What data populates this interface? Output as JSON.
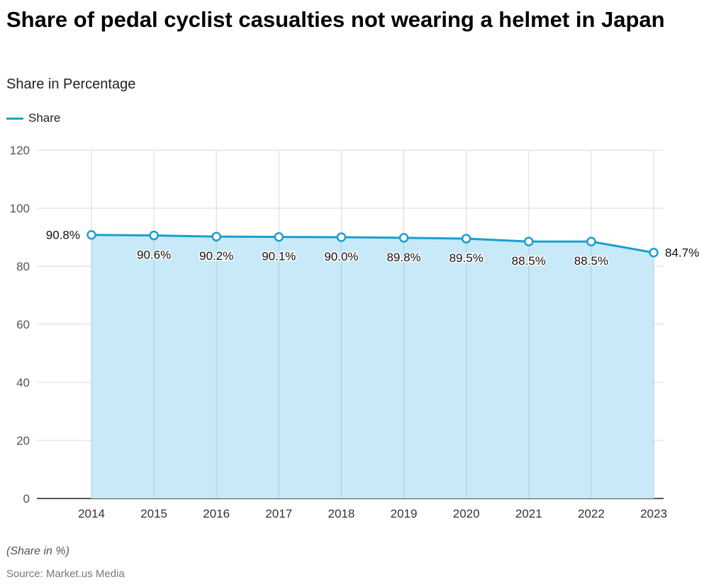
{
  "title": "Share of pedal cyclist casualties not wearing a helmet in Japan",
  "subtitle": "Share in Percentage",
  "note": "(Share in %)",
  "source": "Source: Market.us Media",
  "colors": {
    "line": "#1a9fcc",
    "fill": "#c5e8f7",
    "grid": "#d9d9d9"
  },
  "chart_data": {
    "type": "area",
    "categories": [
      "2014",
      "2015",
      "2016",
      "2017",
      "2018",
      "2019",
      "2020",
      "2021",
      "2022",
      "2023"
    ],
    "series": [
      {
        "name": "Share",
        "values": [
          90.8,
          90.6,
          90.2,
          90.1,
          90.0,
          89.8,
          89.5,
          88.5,
          88.5,
          84.7
        ],
        "labels": [
          "90.8%",
          "90.6%",
          "90.2%",
          "90.1%",
          "90.0%",
          "89.8%",
          "89.5%",
          "88.5%",
          "88.5%",
          "84.7%"
        ]
      }
    ],
    "ylim": [
      0,
      120
    ],
    "yticks": [
      0,
      20,
      40,
      60,
      80,
      100,
      120
    ],
    "grid": true,
    "legend": "top-left"
  }
}
